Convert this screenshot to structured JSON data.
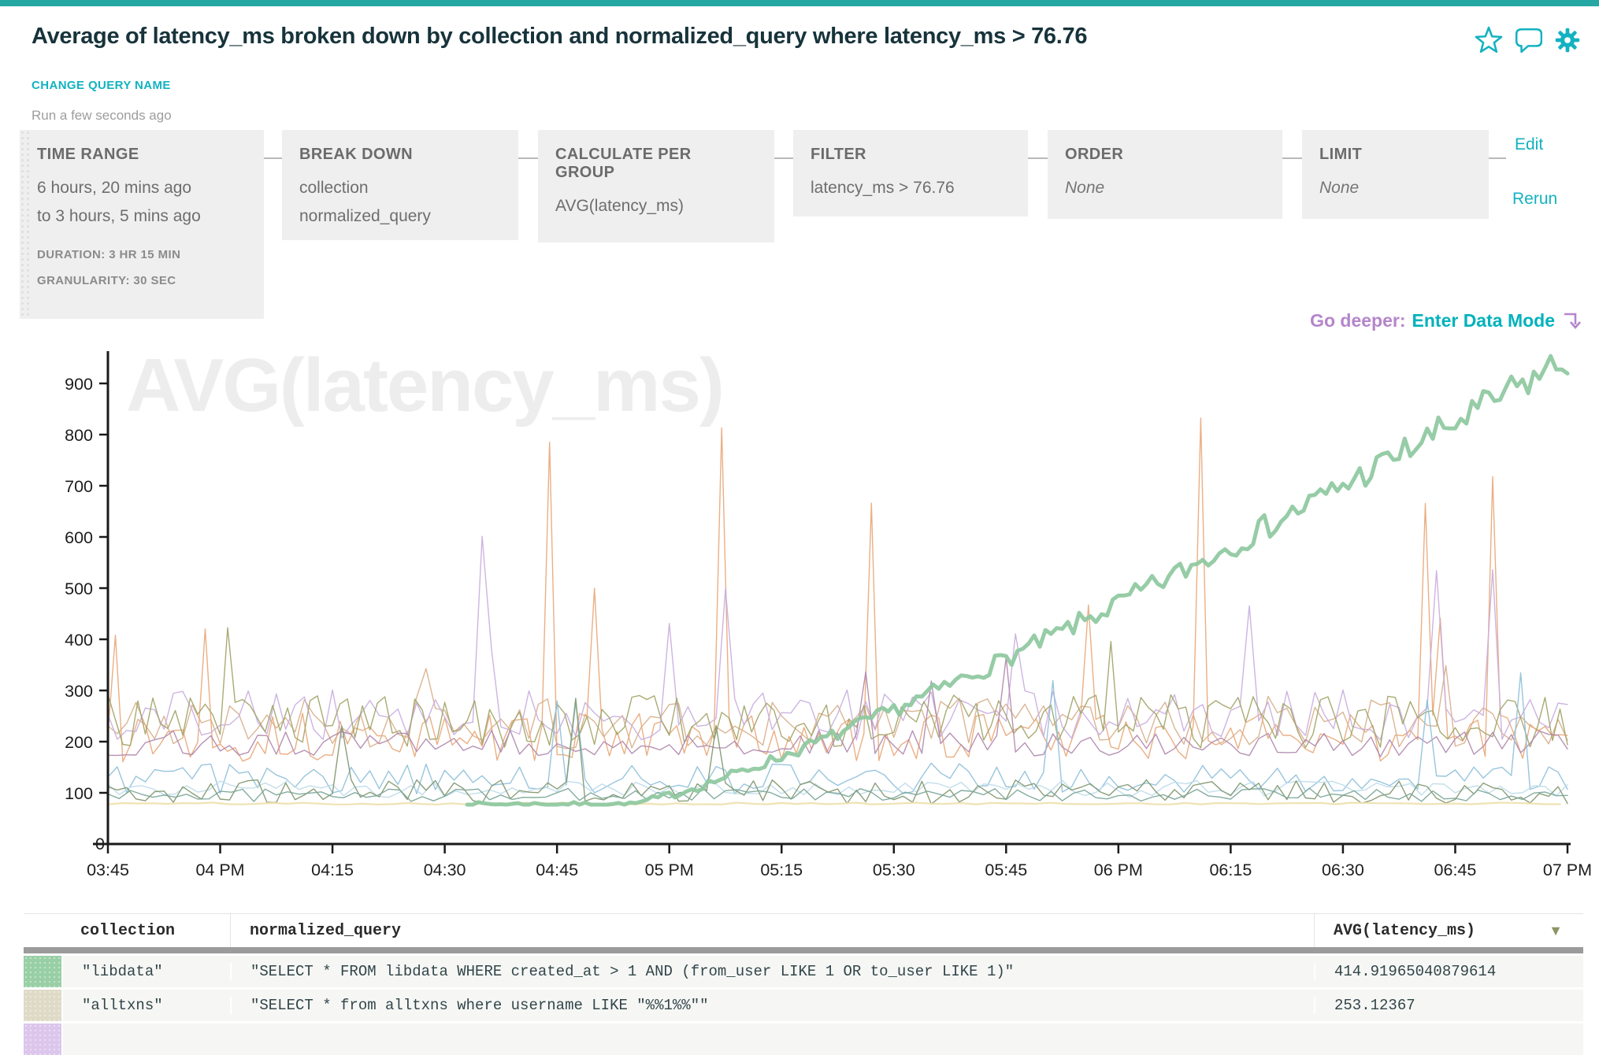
{
  "header": {
    "title": "Average of latency_ms broken down by collection and normalized_query where latency_ms > 76.76",
    "change_query_name": "CHANGE QUERY NAME",
    "run_status": "Run a few seconds ago"
  },
  "icons": {
    "favorite_star": "star-outline",
    "comment": "speech-bubble-outline",
    "settings": "gear-filled",
    "sort_desc": "▼",
    "enter_data_mode_arrow": "down-corner-arrow"
  },
  "colors": {
    "accent_teal": "#13b2c0",
    "purple": "#b585cb",
    "main_series_green": "#8dc89e",
    "axis": "#1a1a1a",
    "box_bg": "#efefef"
  },
  "query_builder": {
    "time_range": {
      "label": "TIME RANGE",
      "line1": "6 hours, 20 mins ago",
      "line2": "to 3 hours, 5 mins ago",
      "duration": "DURATION: 3 HR 15 MIN",
      "granularity": "GRANULARITY: 30 SEC"
    },
    "break_down": {
      "label": "BREAK DOWN",
      "items": [
        "collection",
        "normalized_query"
      ]
    },
    "calculate_per_group": {
      "label": "CALCULATE PER GROUP",
      "value": "AVG(latency_ms)"
    },
    "filter": {
      "label": "FILTER",
      "value": "latency_ms > 76.76"
    },
    "order": {
      "label": "ORDER",
      "value": "None"
    },
    "limit": {
      "label": "LIMIT",
      "value": "None"
    },
    "edit_label": "Edit",
    "rerun_label": "Rerun"
  },
  "go_deeper": {
    "prefix": "Go deeper:",
    "link": "Enter Data Mode"
  },
  "chart_data": {
    "type": "line",
    "watermark": "AVG(latency_ms)",
    "x_tick_labels": [
      "03:45",
      "04 PM",
      "04:15",
      "04:30",
      "04:45",
      "05 PM",
      "05:15",
      "05:30",
      "05:45",
      "06 PM",
      "06:15",
      "06:30",
      "06:45",
      "07 PM"
    ],
    "x_tick_interval_min": 15,
    "time_span_min": 195,
    "y_ticks": [
      0,
      100,
      200,
      300,
      400,
      500,
      600,
      700,
      800,
      900
    ],
    "y_axis_range": [
      0,
      975
    ],
    "grid": false,
    "legend": "none",
    "series": [
      {
        "name": "unlabeled-tan",
        "color": "#d8b08c",
        "width": 1.4,
        "step": 1.25,
        "base": 238,
        "noise": 52,
        "spike_prob": 0.012,
        "spike_min": 330,
        "spike_max": 480,
        "seed": 21
      },
      {
        "name": "unlabeled-orange-spiky",
        "color": "#e8a87a",
        "width": 1.4,
        "step": 1,
        "base": 208,
        "noise": 48,
        "spike_prob": 0.05,
        "spike_min": 390,
        "spike_max": 878,
        "seed": 13
      },
      {
        "name": "unlabeled-lavender",
        "color": "#c9aede",
        "width": 1.4,
        "step": 1.25,
        "base": 252,
        "noise": 50,
        "spike_prob": 0.03,
        "spike_min": 370,
        "spike_max": 620,
        "seed": 37
      },
      {
        "name": "unlabeled-olive",
        "color": "#a2a468",
        "width": 1.4,
        "step": 1,
        "base": 240,
        "noise": 52,
        "spike_prob": 0.015,
        "spike_min": 340,
        "spike_max": 440,
        "seed": 43
      },
      {
        "name": "unlabeled-plum",
        "color": "#b189ae",
        "width": 1.4,
        "step": 1.25,
        "base": 196,
        "noise": 26,
        "spike_prob": 0.01,
        "spike_min": 270,
        "spike_max": 380,
        "seed": 53
      },
      {
        "name": "unlabeled-steel-blue",
        "color": "#8fc0da",
        "width": 1.4,
        "step": 1.25,
        "base": 128,
        "noise": 30,
        "spike_prob": 0.03,
        "spike_min": 220,
        "spike_max": 350,
        "seed": 61
      },
      {
        "name": "unlabeled-pale-blue",
        "color": "#bddbe9",
        "width": 1.4,
        "step": 1.5,
        "base": 108,
        "noise": 17,
        "seed": 71
      },
      {
        "name": "unlabeled-dark-sage",
        "color": "#81976f",
        "width": 1.4,
        "step": 1.25,
        "base": 102,
        "noise": 24,
        "spike_prob": 0.02,
        "spike_min": 180,
        "spike_max": 300,
        "seed": 83
      },
      {
        "name": "unlabeled-muted-teal",
        "color": "#7aa598",
        "width": 1.4,
        "step": 1.5,
        "base": 96,
        "noise": 13,
        "seed": 97
      },
      {
        "name": "unlabeled-pale-yellow",
        "color": "#eedfac",
        "width": 2.2,
        "step": 2,
        "base": 79,
        "noise": 2,
        "seed": 101
      },
      {
        "name": "libdata SELECT * FROM libdata ... (rising series)",
        "color": "#8dc89e",
        "width": 5,
        "step": 0.75,
        "start_min": 48,
        "base": 78,
        "noise": 56,
        "ceil": 958,
        "trend": {
          "flat_until_min": 70,
          "end_value": 948,
          "exponent": 1.22
        },
        "seed": 7
      }
    ]
  },
  "table": {
    "columns": [
      "collection",
      "normalized_query",
      "AVG(latency_ms)"
    ],
    "rows": [
      {
        "swatch": "#98cfa5",
        "collection": "\"libdata\"",
        "normalized_query": "\"SELECT * FROM libdata WHERE created_at > 1 AND (from_user LIKE 1 OR to_user LIKE 1)\"",
        "avg_latency_ms": "414.91965040879614"
      },
      {
        "swatch": "#dedac6",
        "collection": "\"alltxns\"",
        "normalized_query": "\"SELECT * from alltxns where username LIKE \"%%1%%\"\"",
        "avg_latency_ms": "253.12367"
      },
      {
        "swatch": "#dcc6ec",
        "collection": "",
        "normalized_query": "",
        "avg_latency_ms": ""
      }
    ]
  }
}
